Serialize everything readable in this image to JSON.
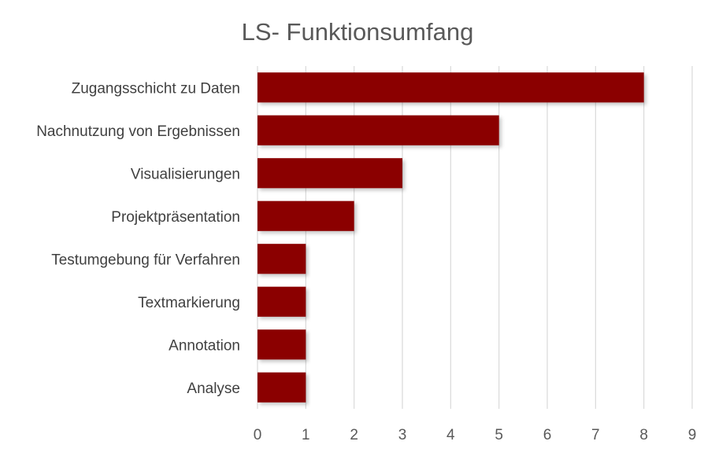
{
  "chart_data": {
    "type": "bar",
    "orientation": "horizontal",
    "title": "LS- Funktionsumfang",
    "categories": [
      "Zugangsschicht zu Daten",
      "Nachnutzung von Ergebnissen",
      "Visualisierungen",
      "Projektpräsentation",
      "Testumgebung für Verfahren",
      "Textmarkierung",
      "Annotation",
      "Analyse"
    ],
    "values": [
      8,
      5,
      3,
      2,
      1,
      1,
      1,
      1
    ],
    "xlim": [
      0,
      9
    ],
    "x_ticks": [
      "0",
      "1",
      "2",
      "3",
      "4",
      "5",
      "6",
      "7",
      "8",
      "9"
    ],
    "xlabel": "",
    "ylabel": "",
    "grid": "vertical",
    "legend": "none",
    "bar_color": "#8b0000",
    "grid_color": "#d9d9d9"
  }
}
